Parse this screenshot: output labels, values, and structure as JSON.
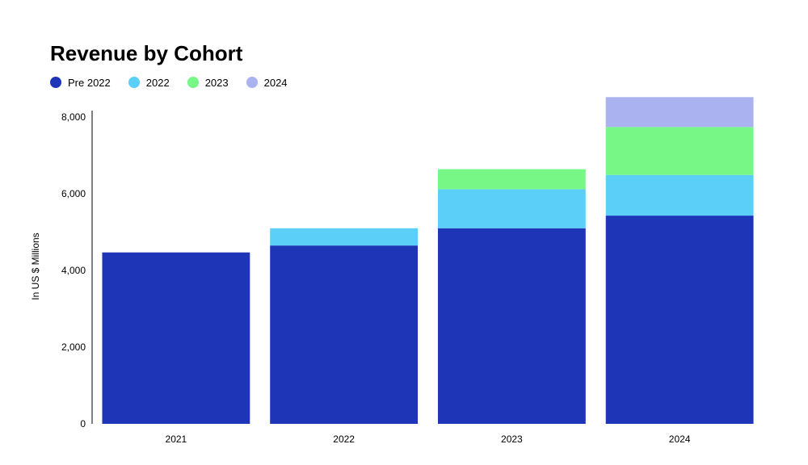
{
  "chart_data": {
    "type": "bar",
    "stacked": true,
    "title": "Revenue by Cohort",
    "xlabel": "",
    "ylabel": "In US $ Millions",
    "categories": [
      "2021",
      "2022",
      "2023",
      "2024"
    ],
    "series": [
      {
        "name": "Pre 2022",
        "color": "#1e35b8",
        "values": [
          4470,
          4650,
          5100,
          5430
        ]
      },
      {
        "name": "2022",
        "color": "#5ccff8",
        "values": [
          0,
          450,
          1020,
          1060
        ]
      },
      {
        "name": "2023",
        "color": "#77f786",
        "values": [
          0,
          0,
          520,
          1250
        ]
      },
      {
        "name": "2024",
        "color": "#aab2f0",
        "values": [
          0,
          0,
          0,
          780
        ]
      }
    ],
    "yticks": [
      0,
      2000,
      4000,
      6000,
      8000
    ],
    "ytick_labels": [
      "0",
      "2,000",
      "4,000",
      "6,000",
      "8,000"
    ],
    "ylim": [
      0,
      8400
    ],
    "grid": false,
    "legend_position": "top-left"
  }
}
